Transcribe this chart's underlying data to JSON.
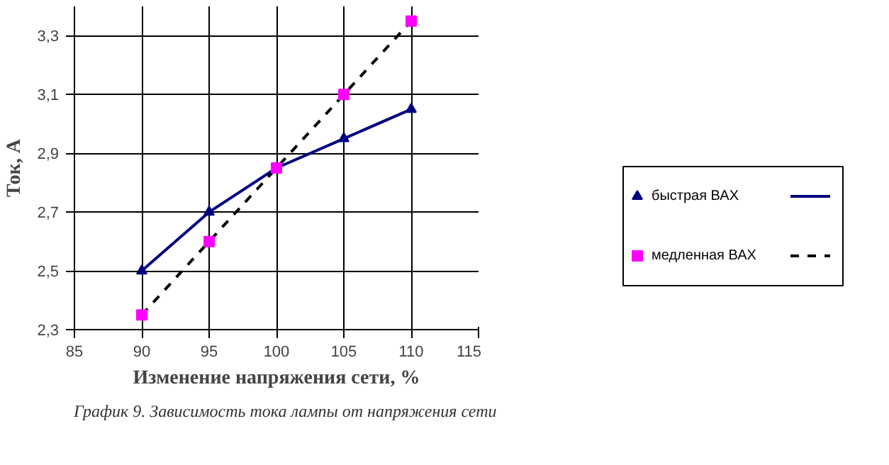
{
  "chart_data": {
    "type": "line",
    "xlabel": "Изменение напряжения сети, %",
    "ylabel": "Ток, А",
    "x": [
      90,
      95,
      100,
      105,
      110
    ],
    "series": [
      {
        "name": "быстрая ВАХ",
        "color": "#000080",
        "values": [
          2.5,
          2.7,
          2.85,
          2.95,
          3.05
        ],
        "marker": "triangle",
        "line_style": "solid"
      },
      {
        "name": "медленная ВАХ",
        "color": "#000000",
        "colors": [
          "#ff00ff",
          "#ff00ff",
          "#ff00ff",
          "#ff00ff",
          "#ff00ff"
        ],
        "values": [
          2.35,
          2.6,
          2.85,
          3.1,
          3.35
        ],
        "marker": "square",
        "line_style": "dashed"
      }
    ],
    "xlim": [
      85,
      115
    ],
    "xticks": [
      85,
      90,
      95,
      100,
      105,
      110,
      115
    ],
    "ylim": [
      2.3,
      3.4
    ],
    "yticks": [
      {
        "value": 2.3,
        "label": "2,3"
      },
      {
        "value": 2.5,
        "label": "2,5"
      },
      {
        "value": 2.7,
        "label": "2,7"
      },
      {
        "value": 2.9,
        "label": "2,9"
      },
      {
        "value": 3.1,
        "label": "3,1"
      },
      {
        "value": 3.3,
        "label": "3,3"
      }
    ],
    "grid": true,
    "legend": "right",
    "annotations": [
      "График 9. Зависимость тока лампы от напряжения сети"
    ]
  }
}
